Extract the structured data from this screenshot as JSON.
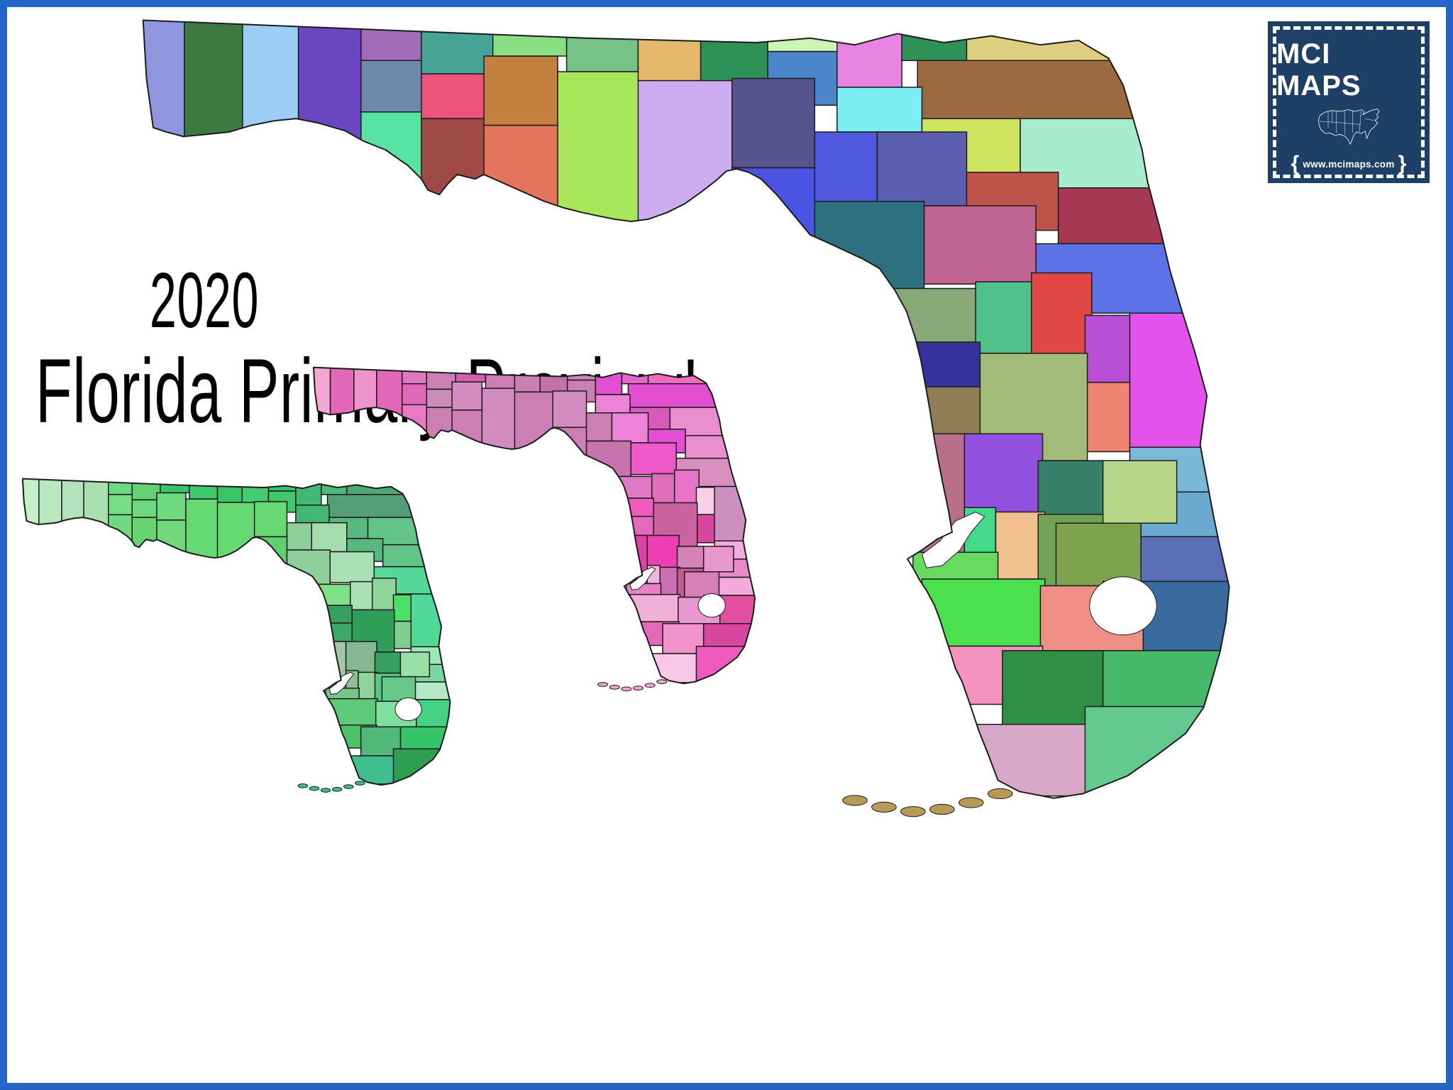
{
  "page": {
    "background": "#ffffff",
    "border_color": "#2565c8"
  },
  "title": {
    "line1": "2020",
    "line2": "Florida Primary Preview!",
    "color": "#000000"
  },
  "logo": {
    "text": "MCI MAPS",
    "url_text": "www.mcimaps.com",
    "brace_left": "{",
    "brace_right": "}",
    "background": "#1e3f66",
    "text_color": "#ffffff"
  },
  "maps": [
    {
      "id": "florida-county-map-multicolor",
      "label": "Florida county map (multicolor)",
      "outline_color": "#1c1c1c",
      "water_color": "#ffffff",
      "keys_color": "#b89a55",
      "palette": {
        "escambia": "#8e96dd",
        "santa_rosa": "#3d7a41",
        "okaloosa": "#9ccef5",
        "walton": "#6b46c2",
        "holmes": "#a06cb8",
        "washington": "#6e87ab",
        "bay": "#57e3a2",
        "jackson": "#46a396",
        "calhoun": "#ee537b",
        "gulf": "#a04a48",
        "liberty": "#c3803f",
        "franklin": "#e4755c",
        "gadsden": "#8ade82",
        "leon": "#77c287",
        "wakulla": "#a8e75c",
        "jefferson": "#e5b96b",
        "madison": "#2e9158",
        "taylor": "#cdabf1",
        "hamilton": "#cdf6b4",
        "suwannee": "#4a86c9",
        "lafayette": "#57538f",
        "dixie": "#4b53e2",
        "columbia": "#e883e2",
        "baker": "#2f9157",
        "nassau": "#ddd17f",
        "duval": "#9c6a40",
        "union": "#7ceef4",
        "clay": "#cde45e",
        "st_johns": "#a8ecd0",
        "gilchrist": "#5058e0",
        "alachua": "#5a5fb0",
        "putnam": "#c05349",
        "flagler": "#a63a56",
        "levy": "#2e7080",
        "marion": "#c06592",
        "volusia": "#5e72e8",
        "citrus": "#87a877",
        "sumter": "#50c289",
        "lake": "#e14747",
        "orange": "#b94fd6",
        "osceola": "#ef8570",
        "brevard": "#e352ea",
        "hernando": "#34349c",
        "pasco": "#8f7d55",
        "polk": "#a3bb78",
        "hillsborough": "#9150dd",
        "manatee": "#42d98a",
        "pinellas": "#b8708a",
        "indian_river": "#7ab8d8",
        "st_lucie": "#6aaad0",
        "okeechobee": "#b6d788",
        "martin": "#5a6fb8",
        "hardee": "#36806a",
        "desoto": "#f2bf8e",
        "highlands": "#71a355",
        "glades": "#7da34f",
        "sarasota": "#68da60",
        "charlotte": "#4ae04e",
        "palm_beach": "#3a6b9e",
        "hendry": "#ef8f85",
        "lee": "#f493be",
        "broward": "#45b86a",
        "collier": "#2f8f47",
        "monroe": "#d8a8c8",
        "miami_dade": "#63c98f"
      }
    },
    {
      "id": "florida-district-map-pink",
      "label": "Florida district map (pink/magenta)",
      "outline_color": "#1c1c1c",
      "water_color": "#ffffff",
      "keys_color": "#f6a0d4",
      "palette": {
        "escambia": "#f2a8d2",
        "santa_rosa": "#e468ba",
        "okaloosa": "#ef93cb",
        "walton": "#e468ba",
        "holmes": "#dd79c0",
        "washington": "#e468ba",
        "bay": "#e879c4",
        "jackson": "#cc7fb2",
        "calhoun": "#c98bb7",
        "gulf": "#cc7fb2",
        "liberty": "#d38cc0",
        "franklin": "#cc7fb2",
        "gadsden": "#d45fb2",
        "leon": "#cc7fb2",
        "wakulla": "#d38cc0",
        "jefferson": "#cc7fb2",
        "madison": "#c272a8",
        "taylor": "#cc7fb2",
        "hamilton": "#cb86b4",
        "suwannee": "#cc7fb2",
        "lafayette": "#d38cc0",
        "dixie": "#cc7fb2",
        "columbia": "#e24fd2",
        "baker": "#e865cc",
        "nassau": "#ef6bbf",
        "duval": "#e24fd2",
        "union": "#ee82d8",
        "clay": "#d85abb",
        "st_johns": "#e98fd0",
        "gilchrist": "#cc7fb2",
        "alachua": "#ee82d8",
        "putnam": "#e24fd2",
        "flagler": "#e98fd0",
        "levy": "#c974ae",
        "marion": "#ee58c8",
        "volusia": "#d88fbf",
        "citrus": "#e079c3",
        "sumter": "#dd6fb8",
        "lake": "#e873c8",
        "orange": "#f7d0e8",
        "osceola": "#d8469e",
        "brevard": "#cc8fc0",
        "hernando": "#ef5bbd",
        "pasco": "#e668bb",
        "polk": "#c9629f",
        "hillsborough": "#ee3fb2",
        "manatee": "#f2b8dc",
        "pinellas": "#e040a8",
        "indian_river": "#f4aadc",
        "st_lucie": "#e888c8",
        "okeechobee": "#e898cf",
        "martin": "#f4aadc",
        "hardee": "#d883b8",
        "desoto": "#cb6fae",
        "highlands": "#c05a92",
        "glades": "#d87fb8",
        "sarasota": "#e87fc8",
        "charlotte": "#f0b0d8",
        "palm_beach": "#e24f9e",
        "hendry": "#e898cf",
        "lee": "#e668bb",
        "broward": "#d8469e",
        "collier": "#f293cc",
        "monroe": "#f9c8e8",
        "miami_dade": "#ef5bbd"
      }
    },
    {
      "id": "florida-district-map-green",
      "label": "Florida district map (green)",
      "outline_color": "#1c1c1c",
      "water_color": "#ffffff",
      "keys_color": "#3fbf8f",
      "palette": {
        "escambia": "#c6eec9",
        "santa_rosa": "#b9e8bf",
        "okaloosa": "#b2e4bb",
        "walton": "#a9e0b2",
        "holmes": "#6fd97f",
        "washington": "#79dc86",
        "bay": "#6fd97f",
        "jackson": "#62d275",
        "calhoun": "#6fd97f",
        "gulf": "#66d46f",
        "liberty": "#6fd97f",
        "franklin": "#72d87e",
        "gadsden": "#38c568",
        "leon": "#3fca6e",
        "wakulla": "#66d973",
        "jefferson": "#38c568",
        "madison": "#44cc70",
        "taylor": "#66d973",
        "hamilton": "#38c568",
        "suwannee": "#42c86c",
        "lafayette": "#66d973",
        "dixie": "#5fd06f",
        "columbia": "#43b872",
        "baker": "#4cbd78",
        "nassau": "#4fa872",
        "duval": "#569e76",
        "union": "#43b872",
        "clay": "#58b87f",
        "st_johns": "#63c488",
        "gilchrist": "#8fcf9a",
        "alachua": "#a4dcae",
        "putnam": "#58b87f",
        "flagler": "#63c488",
        "levy": "#8fcf9a",
        "marion": "#abe0b5",
        "volusia": "#52d998",
        "citrus": "#7fe089",
        "sumter": "#abe0b5",
        "lake": "#8fd49a",
        "orange": "#4ae06a",
        "osceola": "#7fcf90",
        "brevard": "#52d998",
        "hernando": "#35a05f",
        "pasco": "#3da868",
        "polk": "#2f9e58",
        "hillsborough": "#86b890",
        "manatee": "#8fbf98",
        "pinellas": "#a0c8a8",
        "indian_river": "#98e8b8",
        "st_lucie": "#78d8a0",
        "okeechobee": "#98e0a8",
        "martin": "#b5e8c5",
        "hardee": "#35a05f",
        "desoto": "#8fd49a",
        "highlands": "#58c983",
        "glades": "#66c987",
        "sarasota": "#79c489",
        "charlotte": "#5ec979",
        "palm_beach": "#45d083",
        "hendry": "#7fdf9f",
        "lee": "#4cc368",
        "broward": "#35c568",
        "collier": "#52b878",
        "monroe": "#3fbf8f",
        "miami_dade": "#2e9e52"
      }
    }
  ]
}
